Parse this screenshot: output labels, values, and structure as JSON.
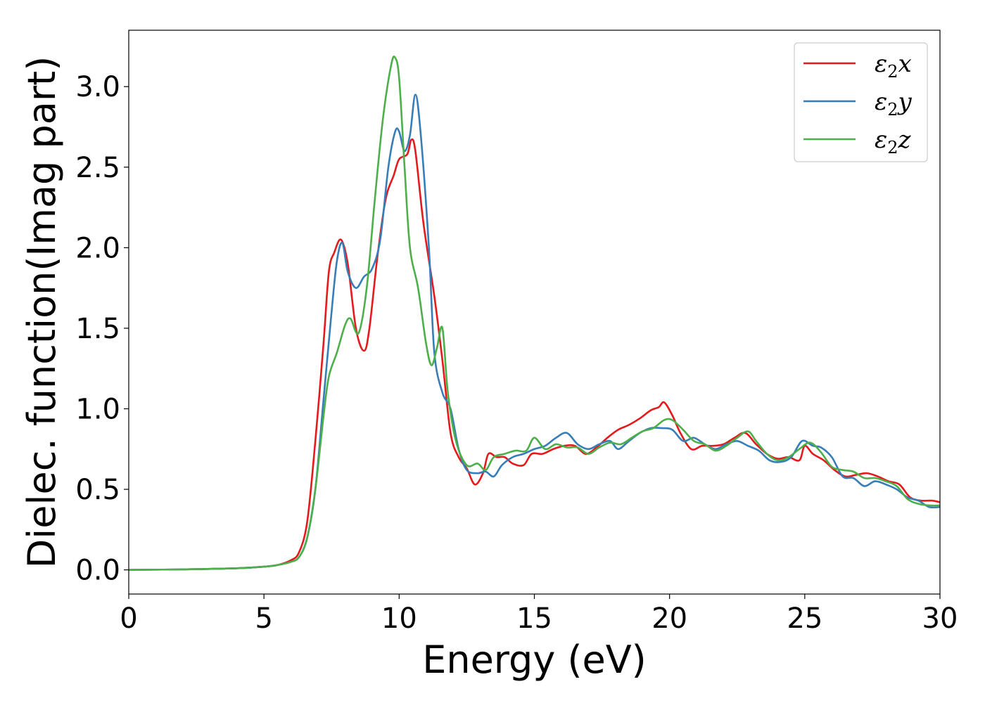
{
  "chart_data": {
    "type": "line",
    "xlabel": "Energy (eV)",
    "ylabel": "Dielec. function(Imag part)",
    "xlim": [
      0,
      30
    ],
    "ylim": [
      -0.15,
      3.35
    ],
    "xticks": [
      0,
      5,
      10,
      15,
      20,
      25,
      30
    ],
    "yticks": [
      0.0,
      0.5,
      1.0,
      1.5,
      2.0,
      2.5,
      3.0
    ],
    "xtick_labels": [
      "0",
      "5",
      "10",
      "15",
      "20",
      "25",
      "30"
    ],
    "ytick_labels": [
      "0.0",
      "0.5",
      "1.0",
      "1.5",
      "2.0",
      "2.5",
      "3.0"
    ],
    "grid": false,
    "legend_position": "top-right",
    "series": [
      {
        "name": "ε₂x",
        "legend_symbol": "ε",
        "legend_sub": "2",
        "legend_suffix": "x",
        "color": "#e41a1c",
        "points": [
          [
            0,
            0.0
          ],
          [
            2,
            0.003
          ],
          [
            4,
            0.01
          ],
          [
            5,
            0.02
          ],
          [
            5.5,
            0.03
          ],
          [
            6,
            0.06
          ],
          [
            6.3,
            0.11
          ],
          [
            6.6,
            0.3
          ],
          [
            6.9,
            0.8
          ],
          [
            7.2,
            1.4
          ],
          [
            7.4,
            1.85
          ],
          [
            7.6,
            1.97
          ],
          [
            7.85,
            2.05
          ],
          [
            8.1,
            1.9
          ],
          [
            8.4,
            1.5
          ],
          [
            8.7,
            1.36
          ],
          [
            8.9,
            1.5
          ],
          [
            9.2,
            1.95
          ],
          [
            9.5,
            2.3
          ],
          [
            9.8,
            2.45
          ],
          [
            10.0,
            2.55
          ],
          [
            10.3,
            2.58
          ],
          [
            10.45,
            2.67
          ],
          [
            10.6,
            2.6
          ],
          [
            10.9,
            2.15
          ],
          [
            11.3,
            1.7
          ],
          [
            11.6,
            1.3
          ],
          [
            11.9,
            0.85
          ],
          [
            12.2,
            0.7
          ],
          [
            12.5,
            0.63
          ],
          [
            12.8,
            0.53
          ],
          [
            13.1,
            0.6
          ],
          [
            13.3,
            0.72
          ],
          [
            13.6,
            0.7
          ],
          [
            13.9,
            0.7
          ],
          [
            14.2,
            0.66
          ],
          [
            14.6,
            0.65
          ],
          [
            14.9,
            0.72
          ],
          [
            15.3,
            0.72
          ],
          [
            15.7,
            0.75
          ],
          [
            16.1,
            0.77
          ],
          [
            16.5,
            0.77
          ],
          [
            16.9,
            0.72
          ],
          [
            17.3,
            0.76
          ],
          [
            17.7,
            0.82
          ],
          [
            18.1,
            0.87
          ],
          [
            18.5,
            0.9
          ],
          [
            18.9,
            0.94
          ],
          [
            19.3,
            0.99
          ],
          [
            19.6,
            1.01
          ],
          [
            19.8,
            1.04
          ],
          [
            20.1,
            0.96
          ],
          [
            20.4,
            0.85
          ],
          [
            20.8,
            0.75
          ],
          [
            21.2,
            0.77
          ],
          [
            21.6,
            0.77
          ],
          [
            22.0,
            0.78
          ],
          [
            22.4,
            0.82
          ],
          [
            22.8,
            0.85
          ],
          [
            23.2,
            0.78
          ],
          [
            23.6,
            0.72
          ],
          [
            24.0,
            0.69
          ],
          [
            24.4,
            0.7
          ],
          [
            24.8,
            0.68
          ],
          [
            25.0,
            0.77
          ],
          [
            25.3,
            0.72
          ],
          [
            25.7,
            0.68
          ],
          [
            26.1,
            0.62
          ],
          [
            26.5,
            0.58
          ],
          [
            26.9,
            0.59
          ],
          [
            27.3,
            0.6
          ],
          [
            27.7,
            0.58
          ],
          [
            28.1,
            0.55
          ],
          [
            28.5,
            0.53
          ],
          [
            28.9,
            0.45
          ],
          [
            29.3,
            0.43
          ],
          [
            29.7,
            0.43
          ],
          [
            30.0,
            0.42
          ]
        ]
      },
      {
        "name": "ε₂y",
        "legend_symbol": "ε",
        "legend_sub": "2",
        "legend_suffix": "y",
        "color": "#377eb8",
        "points": [
          [
            0,
            0.0
          ],
          [
            2,
            0.003
          ],
          [
            4,
            0.01
          ],
          [
            5,
            0.02
          ],
          [
            5.5,
            0.03
          ],
          [
            6,
            0.05
          ],
          [
            6.3,
            0.08
          ],
          [
            6.6,
            0.2
          ],
          [
            6.9,
            0.5
          ],
          [
            7.2,
            1.05
          ],
          [
            7.5,
            1.6
          ],
          [
            7.7,
            1.92
          ],
          [
            7.9,
            2.03
          ],
          [
            8.1,
            1.85
          ],
          [
            8.4,
            1.75
          ],
          [
            8.7,
            1.82
          ],
          [
            9.0,
            1.87
          ],
          [
            9.3,
            2.05
          ],
          [
            9.6,
            2.5
          ],
          [
            9.85,
            2.72
          ],
          [
            10.0,
            2.72
          ],
          [
            10.2,
            2.6
          ],
          [
            10.4,
            2.7
          ],
          [
            10.6,
            2.95
          ],
          [
            10.8,
            2.7
          ],
          [
            11.1,
            2.0
          ],
          [
            11.3,
            1.35
          ],
          [
            11.6,
            1.1
          ],
          [
            11.9,
            1.0
          ],
          [
            12.2,
            0.75
          ],
          [
            12.5,
            0.62
          ],
          [
            12.9,
            0.6
          ],
          [
            13.2,
            0.61
          ],
          [
            13.5,
            0.58
          ],
          [
            13.8,
            0.65
          ],
          [
            14.2,
            0.7
          ],
          [
            14.6,
            0.72
          ],
          [
            15.0,
            0.75
          ],
          [
            15.4,
            0.77
          ],
          [
            15.8,
            0.82
          ],
          [
            16.2,
            0.85
          ],
          [
            16.6,
            0.78
          ],
          [
            17.0,
            0.75
          ],
          [
            17.4,
            0.78
          ],
          [
            17.8,
            0.8
          ],
          [
            18.1,
            0.75
          ],
          [
            18.5,
            0.8
          ],
          [
            18.9,
            0.85
          ],
          [
            19.3,
            0.88
          ],
          [
            19.7,
            0.88
          ],
          [
            20.1,
            0.87
          ],
          [
            20.5,
            0.8
          ],
          [
            20.9,
            0.82
          ],
          [
            21.3,
            0.78
          ],
          [
            21.7,
            0.75
          ],
          [
            22.1,
            0.78
          ],
          [
            22.5,
            0.8
          ],
          [
            22.9,
            0.77
          ],
          [
            23.3,
            0.74
          ],
          [
            23.7,
            0.68
          ],
          [
            24.1,
            0.67
          ],
          [
            24.5,
            0.7
          ],
          [
            24.9,
            0.8
          ],
          [
            25.3,
            0.77
          ],
          [
            25.6,
            0.76
          ],
          [
            26.0,
            0.7
          ],
          [
            26.4,
            0.58
          ],
          [
            26.8,
            0.57
          ],
          [
            27.2,
            0.52
          ],
          [
            27.6,
            0.55
          ],
          [
            28.0,
            0.53
          ],
          [
            28.4,
            0.5
          ],
          [
            28.8,
            0.45
          ],
          [
            29.2,
            0.43
          ],
          [
            29.6,
            0.39
          ],
          [
            30.0,
            0.39
          ]
        ]
      },
      {
        "name": "ε₂z",
        "legend_symbol": "ε",
        "legend_sub": "2",
        "legend_suffix": "z",
        "color": "#4daf4a",
        "points": [
          [
            0,
            0.0
          ],
          [
            2,
            0.003
          ],
          [
            4,
            0.01
          ],
          [
            5,
            0.02
          ],
          [
            5.5,
            0.03
          ],
          [
            6,
            0.05
          ],
          [
            6.3,
            0.08
          ],
          [
            6.6,
            0.2
          ],
          [
            6.9,
            0.5
          ],
          [
            7.2,
            0.95
          ],
          [
            7.4,
            1.2
          ],
          [
            7.7,
            1.35
          ],
          [
            8.0,
            1.52
          ],
          [
            8.2,
            1.56
          ],
          [
            8.5,
            1.47
          ],
          [
            8.8,
            1.75
          ],
          [
            9.1,
            2.3
          ],
          [
            9.4,
            2.8
          ],
          [
            9.7,
            3.13
          ],
          [
            9.85,
            3.18
          ],
          [
            10.0,
            3.05
          ],
          [
            10.2,
            2.5
          ],
          [
            10.4,
            2.0
          ],
          [
            10.7,
            1.75
          ],
          [
            11.0,
            1.4
          ],
          [
            11.2,
            1.27
          ],
          [
            11.4,
            1.38
          ],
          [
            11.6,
            1.5
          ],
          [
            11.8,
            1.1
          ],
          [
            12.1,
            0.8
          ],
          [
            12.5,
            0.65
          ],
          [
            12.9,
            0.66
          ],
          [
            13.2,
            0.62
          ],
          [
            13.5,
            0.7
          ],
          [
            13.9,
            0.72
          ],
          [
            14.3,
            0.74
          ],
          [
            14.7,
            0.74
          ],
          [
            15.0,
            0.82
          ],
          [
            15.4,
            0.75
          ],
          [
            15.8,
            0.78
          ],
          [
            16.2,
            0.76
          ],
          [
            16.6,
            0.76
          ],
          [
            17.0,
            0.72
          ],
          [
            17.4,
            0.76
          ],
          [
            17.8,
            0.79
          ],
          [
            18.2,
            0.78
          ],
          [
            18.6,
            0.82
          ],
          [
            19.0,
            0.86
          ],
          [
            19.4,
            0.88
          ],
          [
            19.8,
            0.93
          ],
          [
            20.1,
            0.93
          ],
          [
            20.5,
            0.87
          ],
          [
            20.9,
            0.8
          ],
          [
            21.3,
            0.78
          ],
          [
            21.7,
            0.74
          ],
          [
            22.1,
            0.77
          ],
          [
            22.5,
            0.82
          ],
          [
            22.9,
            0.86
          ],
          [
            23.2,
            0.8
          ],
          [
            23.6,
            0.72
          ],
          [
            24.0,
            0.68
          ],
          [
            24.4,
            0.7
          ],
          [
            24.8,
            0.75
          ],
          [
            25.2,
            0.79
          ],
          [
            25.6,
            0.73
          ],
          [
            26.0,
            0.64
          ],
          [
            26.4,
            0.62
          ],
          [
            26.8,
            0.61
          ],
          [
            27.2,
            0.57
          ],
          [
            27.6,
            0.57
          ],
          [
            28.0,
            0.55
          ],
          [
            28.4,
            0.52
          ],
          [
            28.8,
            0.44
          ],
          [
            29.2,
            0.41
          ],
          [
            29.6,
            0.4
          ],
          [
            30.0,
            0.4
          ]
        ]
      }
    ]
  }
}
